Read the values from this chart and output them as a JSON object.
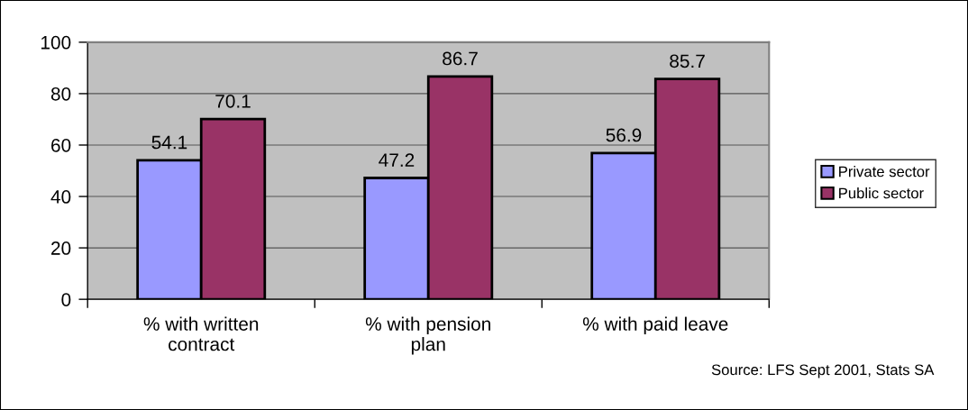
{
  "chart_data": {
    "type": "bar",
    "categories": [
      "% with written\ncontract",
      "% with pension\nplan",
      "% with paid leave"
    ],
    "series": [
      {
        "name": "Private sector",
        "color": "#9999ff",
        "values": [
          54.1,
          47.2,
          56.9
        ]
      },
      {
        "name": "Public sector",
        "color": "#993366",
        "values": [
          70.1,
          86.7,
          85.7
        ]
      }
    ],
    "ylim": [
      0,
      100
    ],
    "yticks": [
      0,
      20,
      40,
      60,
      80,
      100
    ],
    "grid": "y",
    "legend": "right",
    "data_labels": true,
    "annotations": [
      "Source: LFS Sept 2001, Stats SA"
    ]
  }
}
